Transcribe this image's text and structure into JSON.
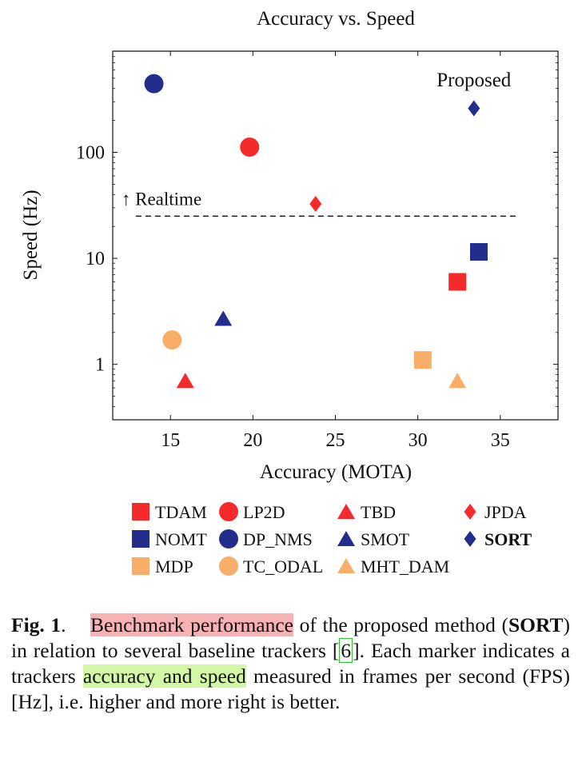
{
  "chart_data": {
    "type": "scatter",
    "title": "Accuracy vs. Speed",
    "xlabel": "Accuracy (MOTA)",
    "ylabel": "Speed (Hz)",
    "xlim": [
      11.5,
      38.5
    ],
    "xticks": [
      15,
      20,
      25,
      30,
      35
    ],
    "ylog": true,
    "ylim": [
      0.3,
      900
    ],
    "yticks": [
      1,
      10,
      100
    ],
    "ytick_labels": [
      "1",
      "10",
      "100"
    ],
    "grid": false,
    "legend_position": "bottom",
    "series": [
      {
        "name": "TDAM",
        "marker": "square",
        "color": "#f52b2b",
        "x": [
          32.4
        ],
        "y": [
          6.0
        ]
      },
      {
        "name": "LP2D",
        "marker": "circle",
        "color": "#f52b2b",
        "x": [
          19.8
        ],
        "y": [
          112
        ]
      },
      {
        "name": "TBD",
        "marker": "triangle",
        "color": "#f52b2b",
        "x": [
          15.9
        ],
        "y": [
          0.7
        ]
      },
      {
        "name": "JPDA",
        "marker": "diamond",
        "color": "#f52b2b",
        "x": [
          23.8
        ],
        "y": [
          32.6
        ]
      },
      {
        "name": "NOMT",
        "marker": "square",
        "color": "#232d8b",
        "x": [
          33.7
        ],
        "y": [
          11.5
        ]
      },
      {
        "name": "DP_NMS",
        "marker": "circle",
        "color": "#232d8b",
        "x": [
          14.0
        ],
        "y": [
          444
        ]
      },
      {
        "name": "SMOT",
        "marker": "triangle",
        "color": "#232d8b",
        "x": [
          18.2
        ],
        "y": [
          2.7
        ]
      },
      {
        "name": "SORT",
        "marker": "diamond",
        "color": "#232d8b",
        "bold": true,
        "x": [
          33.4
        ],
        "y": [
          260
        ]
      },
      {
        "name": "MDP",
        "marker": "square",
        "color": "#f8ae68",
        "x": [
          30.3
        ],
        "y": [
          1.1
        ]
      },
      {
        "name": "TC_ODAL",
        "marker": "circle",
        "color": "#f8ae68",
        "x": [
          15.1
        ],
        "y": [
          1.7
        ]
      },
      {
        "name": "MHT_DAM",
        "marker": "triangle",
        "color": "#f8ae68",
        "x": [
          32.4
        ],
        "y": [
          0.7
        ]
      }
    ],
    "realtime_line": {
      "y": 25,
      "x_start": 12.9,
      "x_end": 36.1,
      "label": "↑ Realtime"
    },
    "annotations": [
      {
        "text": "Proposed",
        "x": 33.4,
        "y": 420
      }
    ]
  },
  "caption": {
    "fig_label": "Fig. 1",
    "period": ".",
    "highlight1": "Benchmark performance",
    "text1": " of the proposed method (",
    "method": "SORT",
    "text2": ") in relation to several baseline trackers [",
    "cite": "6",
    "text3": "]. Each marker indicates a trackers ",
    "highlight2": "accuracy and speed",
    "text4": " measured in frames per second (FPS) [Hz], i.e. higher and more right is better."
  }
}
